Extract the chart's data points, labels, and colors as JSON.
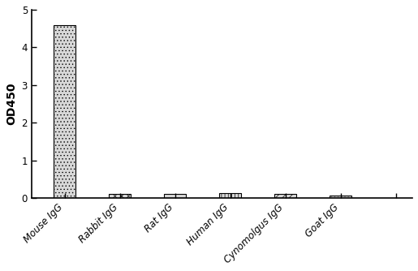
{
  "categories": [
    "Mouse IgG",
    "Rabbit IgG",
    "Rat IgG",
    "Human IgG",
    "Cynomolgus IgG",
    "Goat IgG"
  ],
  "values": [
    4.58,
    0.12,
    0.11,
    0.13,
    0.12,
    0.065
  ],
  "hatch_patterns": [
    "....",
    "xxxx",
    "",
    "||||",
    "////",
    "...."
  ],
  "bar_facecolor": "#d8d8d8",
  "bar_edgecolor": "#000000",
  "bar_width": 0.4,
  "ylabel": "OD450",
  "ylim": [
    0,
    5
  ],
  "yticks": [
    0,
    1,
    2,
    3,
    4,
    5
  ],
  "background_color": "#ffffff",
  "ylabel_fontsize": 10,
  "tick_fontsize": 8.5,
  "title_fontsize": 10
}
